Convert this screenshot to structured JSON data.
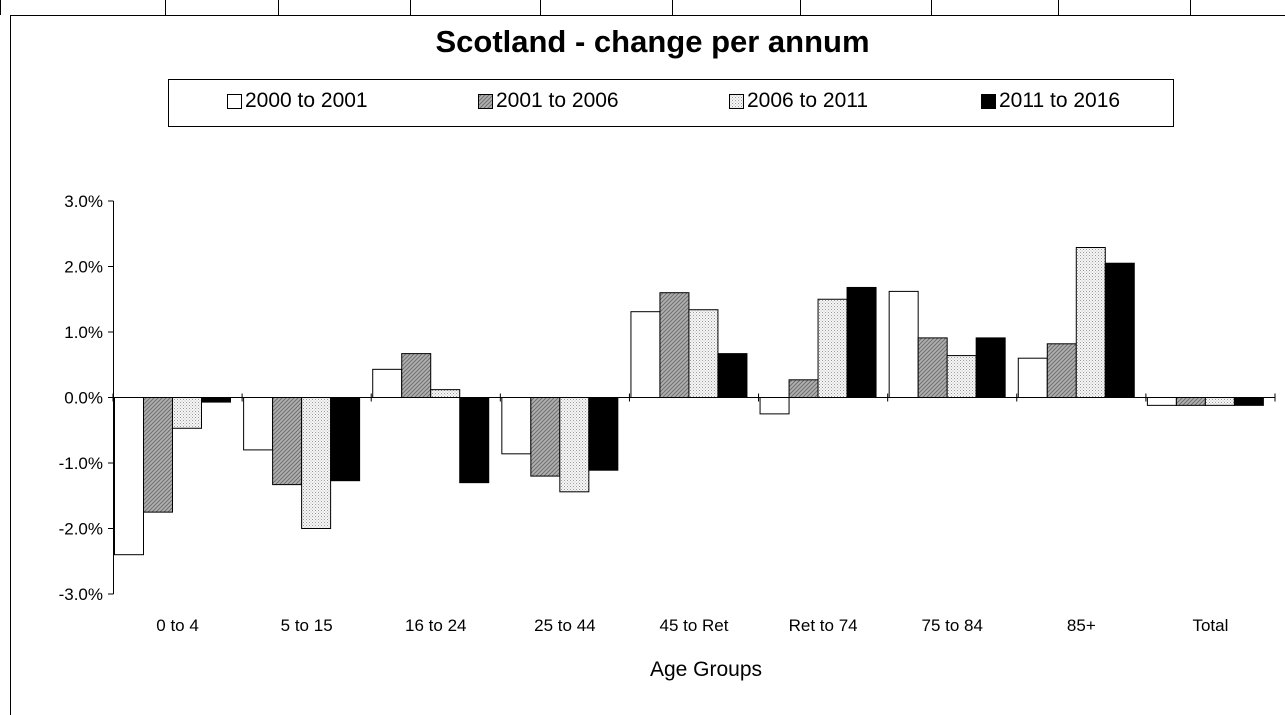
{
  "chart_data": {
    "type": "bar",
    "title": "Scotland - change per annum",
    "xlabel": "Age Groups",
    "ylabel": "",
    "ylim": [
      -0.03,
      0.03
    ],
    "yticks": [
      -0.03,
      -0.02,
      -0.01,
      0.0,
      0.01,
      0.02,
      0.03
    ],
    "ytick_labels": [
      "-3.0%",
      "-2.0%",
      "-1.0%",
      "0.0%",
      "1.0%",
      "2.0%",
      "3.0%"
    ],
    "categories": [
      "0 to 4",
      "5 to 15",
      "16 to 24",
      "25 to 44",
      "45 to Ret",
      "Ret to 74",
      "75 to 84",
      "85+",
      "Total"
    ],
    "legend_position": "top",
    "grid": false,
    "series": [
      {
        "name": "2000 to 2001",
        "fill": "white",
        "color": "#ffffff",
        "values": [
          -0.024,
          -0.008,
          0.0043,
          -0.0086,
          0.0131,
          -0.0025,
          0.0162,
          0.006,
          -0.0012
        ]
      },
      {
        "name": "2001 to 2006",
        "fill": "hatch",
        "color": "#a6a6a6",
        "values": [
          -0.0175,
          -0.0133,
          0.0067,
          -0.012,
          0.016,
          0.0027,
          0.0091,
          0.0082,
          -0.0012
        ]
      },
      {
        "name": "2006 to 2011",
        "fill": "dots",
        "color": "#e6e6e6",
        "values": [
          -0.0047,
          -0.02,
          0.0012,
          -0.0144,
          0.0134,
          0.015,
          0.0064,
          0.0229,
          -0.0012
        ]
      },
      {
        "name": "2011 to 2016",
        "fill": "black",
        "color": "#000000",
        "values": [
          -0.0007,
          -0.0127,
          -0.013,
          -0.0111,
          0.0067,
          0.0168,
          0.0091,
          0.0205,
          -0.0012
        ]
      }
    ]
  }
}
